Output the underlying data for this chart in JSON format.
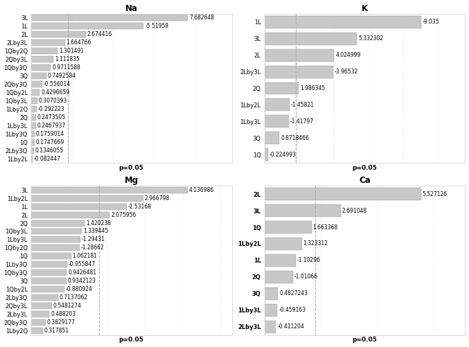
{
  "Na": {
    "title": "Na",
    "labels": [
      "3L",
      "1L",
      "2L",
      "2Lby3L",
      "1Qby2Q",
      "2Qby3L",
      "1Qby3Q",
      "3Q",
      "2Qby3Q",
      "1Qby2L",
      "1Qby3L",
      "1Lby2Q",
      "2Q",
      "1Lby3L",
      "1Lby3Q",
      "1Q",
      "2Lby3Q",
      "1Lby2L"
    ],
    "values": [
      7.682648,
      -5.51958,
      2.674416,
      1.664766,
      1.301491,
      1.111835,
      0.9711588,
      0.7492584,
      -0.556014,
      0.4296659,
      0.3070393,
      -0.292223,
      0.2473505,
      0.2467937,
      0.1759014,
      0.1747669,
      0.1346055,
      -0.082447
    ],
    "p_line": 1.8,
    "xlabel": "p=0.05",
    "label_bold": false
  },
  "K": {
    "title": "K",
    "labels": [
      "1L",
      "3L",
      "2L",
      "2Lby3L",
      "2Q",
      "1Lby2L",
      "1Lby3L",
      "3Q",
      "1Q"
    ],
    "values": [
      -9.035,
      5.332302,
      4.024999,
      -3.96532,
      1.986345,
      -1.45821,
      -1.41797,
      0.8718466,
      -0.224993
    ],
    "p_line": 1.8,
    "xlabel": "p=0.05",
    "label_bold": false
  },
  "Mg": {
    "title": "Mg",
    "labels": [
      "3L",
      "1Lby2L",
      "1L",
      "2L",
      "2Q",
      "1Qby3L",
      "1Lby3L",
      "1Qby2Q",
      "1Q",
      "1Lby3Q",
      "1Qby3Q",
      "3Q",
      "1Qby2L",
      "2Lby3Q",
      "2Qby3L",
      "2Lby3L",
      "2Qby3Q",
      "1Lby2Q"
    ],
    "values": [
      4.136986,
      2.966798,
      -2.53168,
      2.075956,
      1.420238,
      1.339445,
      -1.29431,
      -1.28662,
      1.062181,
      -0.955847,
      0.9426481,
      0.9342123,
      -0.880924,
      0.7137062,
      0.5481274,
      0.488203,
      0.3829177,
      0.317851
    ],
    "p_line": 1.8,
    "xlabel": "p=0.05",
    "label_bold": false
  },
  "Ca": {
    "title": "Ca",
    "labels": [
      "2L",
      "3L",
      "1Q",
      "1Lby2L",
      "1L",
      "2Q",
      "3Q",
      "1Lby3L",
      "2Lby3L"
    ],
    "values": [
      5.527126,
      2.691048,
      1.663368,
      1.323312,
      -1.10296,
      -1.01066,
      0.4827243,
      -0.459163,
      -0.411204
    ],
    "p_line": 1.8,
    "xlabel": "p=0.05",
    "label_bold": true
  },
  "bar_color": "#c8c8c8",
  "bar_edge_color": "#999999",
  "p_line_color": "#aaaaaa",
  "background_color": "#ffffff",
  "grid_color": "#cccccc",
  "text_color": "#000000",
  "label_font_size": 6.0,
  "value_font_size": 5.5,
  "title_font_size": 8.5
}
